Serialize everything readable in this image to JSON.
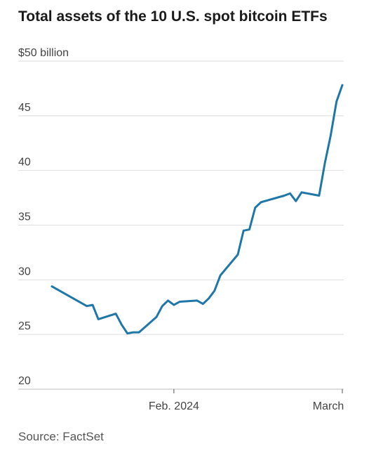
{
  "chart_data": {
    "type": "line",
    "title": "Total assets of the 10 U.S. spot bitcoin ETFs",
    "xlabel": "",
    "ylabel": "",
    "y_tick_labels": [
      "20",
      "25",
      "30",
      "35",
      "40",
      "45",
      "$50 billion"
    ],
    "y_ticks": [
      20,
      25,
      30,
      35,
      40,
      45,
      50
    ],
    "ylim": [
      20,
      50
    ],
    "x_tick_labels": [
      "Feb. 2024",
      "March"
    ],
    "x_ticks": [
      "2024-02-01",
      "2024-03-01"
    ],
    "xlim": [
      "2024-01-11",
      "2024-03-01"
    ],
    "grid": true,
    "legend": "none",
    "series": [
      {
        "color": "#1f77a8",
        "x": [
          "2024-01-11",
          "2024-01-17",
          "2024-01-18",
          "2024-01-19",
          "2024-01-22",
          "2024-01-23",
          "2024-01-24",
          "2024-01-25",
          "2024-01-26",
          "2024-01-29",
          "2024-01-30",
          "2024-01-31",
          "2024-02-01",
          "2024-02-02",
          "2024-02-05",
          "2024-02-06",
          "2024-02-07",
          "2024-02-08",
          "2024-02-09",
          "2024-02-12",
          "2024-02-13",
          "2024-02-14",
          "2024-02-15",
          "2024-02-16",
          "2024-02-20",
          "2024-02-21",
          "2024-02-22",
          "2024-02-23",
          "2024-02-26",
          "2024-02-27",
          "2024-02-28",
          "2024-02-29",
          "2024-03-01"
        ],
        "y": [
          29.4,
          27.6,
          27.7,
          26.4,
          26.9,
          25.9,
          25.1,
          25.2,
          25.2,
          26.6,
          27.6,
          28.1,
          27.7,
          28.0,
          28.1,
          27.8,
          28.3,
          29.0,
          30.4,
          32.3,
          34.5,
          34.6,
          36.6,
          37.1,
          37.7,
          37.9,
          37.2,
          38.0,
          37.7,
          40.7,
          43.2,
          46.3,
          47.8
        ]
      }
    ]
  },
  "source": "Source: FactSet"
}
